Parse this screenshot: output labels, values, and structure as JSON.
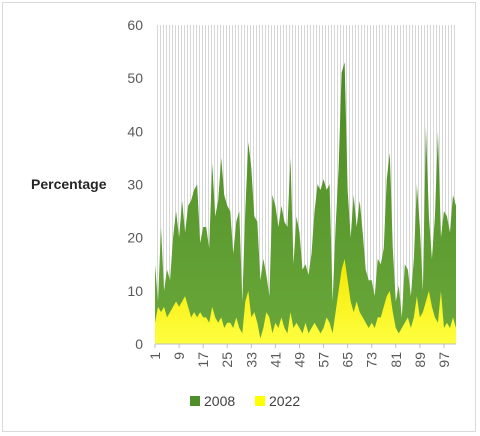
{
  "chart_data": {
    "type": "area",
    "title": "",
    "xlabel": "",
    "ylabel": "Percentage",
    "ylim": [
      0,
      60
    ],
    "yticks": [
      0,
      10,
      20,
      30,
      40,
      50,
      60
    ],
    "x_tick_labels": [
      "1",
      "9",
      "17",
      "25",
      "33",
      "41",
      "49",
      "57",
      "65",
      "73",
      "81",
      "89",
      "97"
    ],
    "x_range": [
      1,
      101
    ],
    "grid": "dotted vertical pattern in plot area",
    "legend_position": "bottom",
    "series": [
      {
        "name": "2008",
        "color": "#4f8f2a",
        "values": [
          15,
          8,
          22,
          10,
          14,
          12,
          20,
          25,
          20,
          27,
          21,
          26,
          27,
          29,
          30,
          19,
          22,
          22,
          18,
          34,
          24,
          27,
          35,
          28,
          26,
          25,
          17,
          23,
          25,
          8,
          25,
          38,
          33,
          24,
          23,
          12,
          16,
          13,
          9,
          28,
          26,
          22,
          26,
          23,
          22,
          35,
          15,
          24,
          21,
          14,
          15,
          13,
          17,
          25,
          30,
          29,
          31,
          29,
          30,
          8,
          22,
          33,
          51,
          53,
          29,
          20,
          28,
          22,
          27,
          21,
          14,
          12,
          12,
          9,
          16,
          15,
          18,
          31,
          36,
          18,
          8,
          11,
          5,
          15,
          14,
          9,
          16,
          30,
          22,
          10,
          41,
          24,
          16,
          24,
          40,
          20,
          25,
          24,
          21,
          28,
          26
        ]
      },
      {
        "name": "2022",
        "color": "#ffff00",
        "values": [
          4,
          7,
          6,
          7,
          5,
          6,
          7,
          8,
          7,
          8,
          9,
          7,
          5,
          6,
          5,
          6,
          5,
          5,
          4,
          7,
          5,
          4,
          5,
          3,
          4,
          4,
          3,
          5,
          3,
          2,
          8,
          10,
          5,
          6,
          4,
          1,
          3,
          6,
          5,
          2,
          4,
          3,
          5,
          3,
          2,
          6,
          3,
          4,
          3,
          2,
          4,
          2,
          3,
          4,
          3,
          2,
          3,
          5,
          4,
          2,
          6,
          10,
          14,
          16,
          12,
          8,
          6,
          8,
          6,
          5,
          4,
          3,
          4,
          3,
          5,
          5,
          7,
          9,
          10,
          6,
          3,
          2,
          3,
          4,
          5,
          3,
          5,
          9,
          5,
          6,
          8,
          10,
          7,
          5,
          4,
          10,
          3,
          4,
          3,
          5,
          3
        ]
      }
    ]
  }
}
